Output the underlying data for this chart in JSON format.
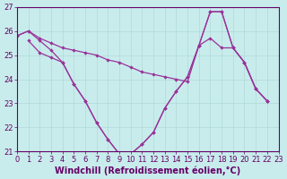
{
  "xlabel": "Windchill (Refroidissement éolien,°C)",
  "ylim": [
    21,
    27
  ],
  "xlim": [
    0,
    23
  ],
  "yticks": [
    21,
    22,
    23,
    24,
    25,
    26,
    27
  ],
  "xticks": [
    0,
    1,
    2,
    3,
    4,
    5,
    6,
    7,
    8,
    9,
    10,
    11,
    12,
    13,
    14,
    15,
    16,
    17,
    18,
    19,
    20,
    21,
    22,
    23
  ],
  "background_color": "#c8ecec",
  "grid_color": "#b0d8d8",
  "line_color": "#993399",
  "font_color": "#660066",
  "tick_fontsize": 6,
  "label_fontsize": 7,
  "line1_x": [
    0,
    1,
    2,
    3,
    4,
    5,
    6,
    7,
    8,
    9,
    10,
    11,
    12,
    13,
    14,
    15,
    16,
    17,
    18,
    19,
    20,
    21,
    22
  ],
  "line1_y": [
    25.8,
    26.0,
    25.7,
    25.5,
    25.3,
    25.2,
    25.1,
    25.0,
    24.8,
    24.7,
    24.5,
    24.3,
    24.2,
    24.1,
    24.0,
    23.9,
    25.4,
    25.7,
    25.3,
    25.3,
    24.7,
    23.6,
    23.1
  ],
  "line2_x": [
    0,
    1,
    2,
    3,
    4,
    5,
    6,
    7,
    8,
    9,
    10,
    11,
    12,
    13,
    14,
    15,
    16,
    17,
    18,
    19,
    20,
    21,
    22
  ],
  "line2_y": [
    25.8,
    26.0,
    25.6,
    25.2,
    24.7,
    23.8,
    23.1,
    22.2,
    21.5,
    20.9,
    20.9,
    21.3,
    21.8,
    22.8,
    23.5,
    24.1,
    25.4,
    26.8,
    26.8,
    25.3,
    24.7,
    23.6,
    23.1
  ],
  "line3_x": [
    1,
    2,
    3,
    4,
    5,
    6,
    7,
    8,
    9,
    10,
    11,
    12,
    13,
    14,
    15,
    16,
    17,
    18,
    19,
    20,
    21,
    22
  ],
  "line3_y": [
    25.6,
    25.1,
    24.9,
    24.7,
    23.8,
    23.1,
    22.2,
    21.5,
    20.9,
    20.9,
    21.3,
    21.8,
    22.8,
    23.5,
    24.1,
    25.4,
    26.8,
    26.8,
    25.3,
    24.7,
    23.6,
    23.1
  ]
}
